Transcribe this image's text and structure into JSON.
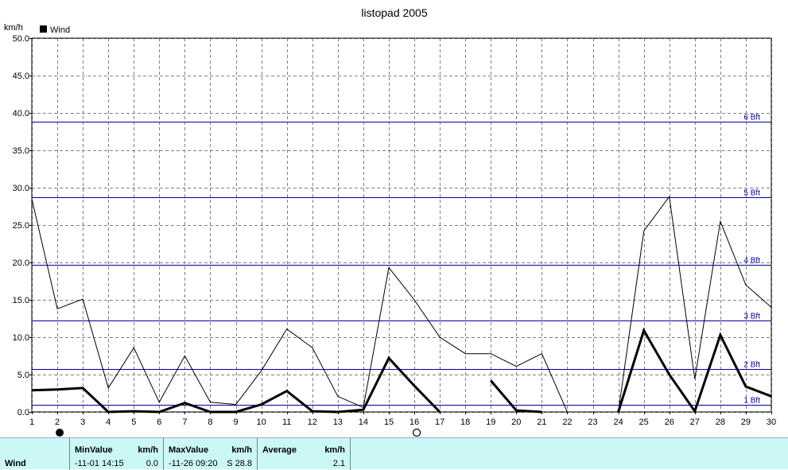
{
  "chart_data": {
    "type": "line",
    "title": "listopad 2005",
    "ylabel": "km/h",
    "ylim": [
      0,
      50
    ],
    "yticks": [
      "0.0",
      "5.0",
      "10.0",
      "15.0",
      "20.0",
      "25.0",
      "30.0",
      "35.0",
      "40.0",
      "45.0",
      "50.0"
    ],
    "x": [
      1,
      2,
      3,
      4,
      5,
      6,
      7,
      8,
      9,
      10,
      11,
      12,
      13,
      14,
      15,
      16,
      17,
      18,
      19,
      20,
      21,
      22,
      23,
      24,
      25,
      26,
      27,
      28,
      29,
      30
    ],
    "xticks": [
      "1",
      "2",
      "3",
      "4",
      "5",
      "6",
      "7",
      "8",
      "9",
      "10",
      "11",
      "12",
      "13",
      "14",
      "15",
      "16",
      "17",
      "18",
      "19",
      "20",
      "21",
      "22",
      "23",
      "24",
      "25",
      "26",
      "27",
      "28",
      "29",
      "30"
    ],
    "legend": {
      "label": "Wind",
      "placement": "top-left"
    },
    "grid": true,
    "series": [
      {
        "name": "Wind",
        "role": "max",
        "values": [
          28.5,
          13.8,
          15.1,
          3.2,
          8.6,
          1.3,
          7.5,
          1.3,
          1.0,
          5.5,
          11.1,
          8.6,
          2.1,
          0.6,
          19.3,
          15.0,
          10.0,
          7.8,
          7.8,
          6.1,
          7.8,
          0.0,
          0.0,
          0.0,
          24.2,
          28.8,
          4.4,
          25.5,
          17.0,
          14.0
        ]
      },
      {
        "name": "Wind",
        "role": "average",
        "values": [
          2.9,
          3.0,
          3.2,
          0.0,
          0.1,
          0.0,
          1.2,
          0.0,
          0.0,
          1.0,
          2.8,
          0.1,
          0.0,
          0.3,
          7.2,
          3.5,
          0.0,
          null,
          4.2,
          0.2,
          0.0,
          null,
          null,
          0.0,
          10.9,
          5.0,
          0.1,
          10.3,
          3.4,
          2.1
        ]
      }
    ],
    "reference_lines": [
      {
        "label": "1 Bft",
        "value": 1.0
      },
      {
        "label": "2 Bft",
        "value": 5.7
      },
      {
        "label": "3 Bft",
        "value": 12.2
      },
      {
        "label": "4 Bft",
        "value": 19.7
      },
      {
        "label": "5 Bft",
        "value": 28.7
      },
      {
        "label": "6 Bft",
        "value": 38.8
      }
    ],
    "moon_phases": [
      {
        "day": 2,
        "phase": "last-quarter"
      },
      {
        "day": 16,
        "phase": "full-moon"
      }
    ],
    "colors": {
      "grid": "#808080",
      "reference": "#0000a0",
      "series": "#000000",
      "table_bg": "#ccf7f7"
    }
  },
  "table": {
    "row_label": "Wind",
    "min_header": "MinValue",
    "min_unit": "km/h",
    "min_time": "-11-01  14:15",
    "min_value": "0.0",
    "max_header": "MaxValue",
    "max_unit": "km/h",
    "max_time": "-11-26  09:20",
    "max_value": "S 28.8",
    "avg_header": "Average",
    "avg_unit": "km/h",
    "avg_value": "2.1"
  }
}
